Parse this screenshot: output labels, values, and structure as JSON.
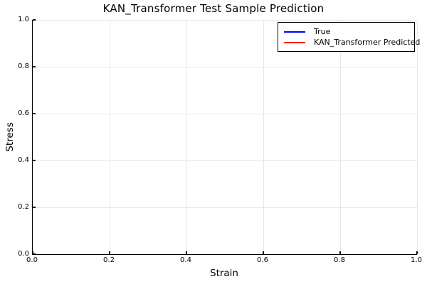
{
  "figure": {
    "background": "#ffffff",
    "grid_color": "#e6e6e6",
    "spine_color": "#000000",
    "plot_area_empty": true
  },
  "chart_data": {
    "type": "line",
    "title": "KAN_Transformer Test Sample Prediction",
    "xlabel": "Strain",
    "ylabel": "Stress",
    "xlim": [
      0.0,
      1.0
    ],
    "ylim": [
      0.0,
      1.0
    ],
    "xticks": [
      0.0,
      0.2,
      0.4,
      0.6,
      0.8,
      1.0
    ],
    "yticks": [
      0.0,
      0.2,
      0.4,
      0.6,
      0.8,
      1.0
    ],
    "xtick_labels": [
      "0.0",
      "0.2",
      "0.4",
      "0.6",
      "0.8",
      "1.0"
    ],
    "ytick_labels": [
      "0.0",
      "0.2",
      "0.4",
      "0.6",
      "0.8",
      "1.0"
    ],
    "grid": true,
    "legend_position": "upper right",
    "series": [
      {
        "name": "True",
        "color": "#0000ff",
        "x": [],
        "values": []
      },
      {
        "name": "KAN_Transformer Predicted",
        "color": "#ff0000",
        "x": [],
        "values": []
      }
    ],
    "visible_data_points": "none - plot area is empty, only axes, grid and legend are drawn"
  }
}
